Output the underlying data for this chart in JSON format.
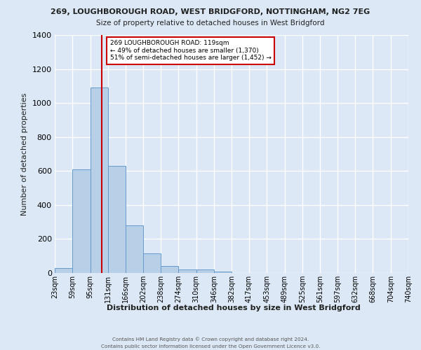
{
  "title_line1": "269, LOUGHBOROUGH ROAD, WEST BRIDGFORD, NOTTINGHAM, NG2 7EG",
  "title_line2": "Size of property relative to detached houses in West Bridgford",
  "xlabel": "Distribution of detached houses by size in West Bridgford",
  "ylabel": "Number of detached properties",
  "bin_labels": [
    "23sqm",
    "59sqm",
    "95sqm",
    "131sqm",
    "166sqm",
    "202sqm",
    "238sqm",
    "274sqm",
    "310sqm",
    "346sqm",
    "382sqm",
    "417sqm",
    "453sqm",
    "489sqm",
    "525sqm",
    "561sqm",
    "597sqm",
    "632sqm",
    "668sqm",
    "704sqm",
    "740sqm"
  ],
  "bin_edges": [
    23,
    59,
    95,
    131,
    166,
    202,
    238,
    274,
    310,
    346,
    382,
    417,
    453,
    489,
    525,
    561,
    597,
    632,
    668,
    704,
    740
  ],
  "bar_heights": [
    30,
    610,
    1090,
    630,
    280,
    115,
    43,
    22,
    22,
    10,
    0,
    0,
    0,
    0,
    0,
    0,
    0,
    0,
    0,
    0
  ],
  "bar_color": "#b8cfe8",
  "bar_edge_color": "#6699cc",
  "bg_color": "#dce8f5",
  "grid_color": "#ffffff",
  "vline_x": 119,
  "vline_color": "#cc0000",
  "annotation_text": "269 LOUGHBOROUGH ROAD: 119sqm\n← 49% of detached houses are smaller (1,370)\n51% of semi-detached houses are larger (1,452) →",
  "annotation_box_color": "white",
  "annotation_box_edge": "#cc0000",
  "ylim": [
    0,
    1400
  ],
  "yticks": [
    0,
    200,
    400,
    600,
    800,
    1000,
    1200,
    1400
  ],
  "footer_line1": "Contains HM Land Registry data © Crown copyright and database right 2024.",
  "footer_line2": "Contains public sector information licensed under the Open Government Licence v3.0."
}
